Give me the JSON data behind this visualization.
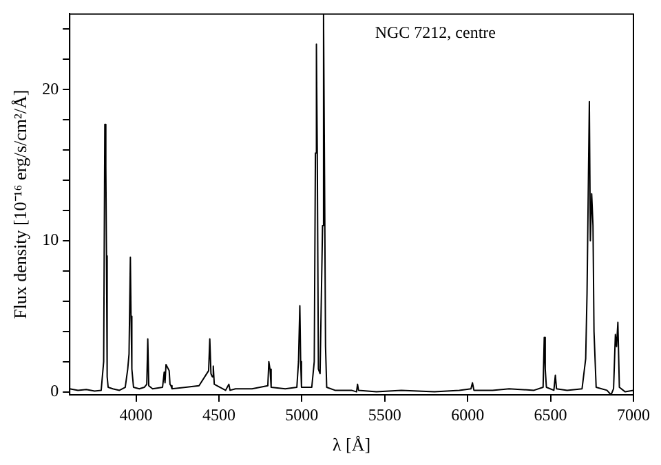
{
  "chart_data": {
    "type": "line",
    "xlabel": "λ [Å]",
    "ylabel": "Flux density [10⁻¹⁶ erg/s/cm²/Å]",
    "annotations": [
      "NGC 7212, centre"
    ],
    "x": [
      3600,
      3650,
      3700,
      3750,
      3790,
      3805,
      3812,
      3818,
      3822,
      3826,
      3832,
      3860,
      3900,
      3935,
      3950,
      3958,
      3966,
      3970,
      3975,
      3985,
      4020,
      4050,
      4065,
      4071,
      4077,
      4100,
      4160,
      4170,
      4175,
      4181,
      4200,
      4205,
      4211,
      4217,
      4300,
      4380,
      4438,
      4445,
      4452,
      4460,
      4466,
      4472,
      4540,
      4560,
      4567,
      4600,
      4700,
      4795,
      4801,
      4808,
      4815,
      4900,
      4970,
      4980,
      4988,
      4993,
      4998,
      5060,
      5075,
      5082,
      5088,
      5093,
      5100,
      5110,
      5125,
      5131,
      5137,
      5143,
      5150,
      5200,
      5300,
      5330,
      5336,
      5342,
      5450,
      5600,
      5800,
      5950,
      6020,
      6029,
      6038,
      6150,
      6250,
      6400,
      6455,
      6462,
      6468,
      6475,
      6520,
      6529,
      6536,
      6600,
      6690,
      6712,
      6720,
      6734,
      6740,
      6748,
      6756,
      6762,
      6775,
      6840,
      6865,
      6880,
      6891,
      6898,
      6906,
      6915,
      6950,
      7000
    ],
    "series": [
      {
        "color": "#000000",
        "values": [
          0.2,
          0.1,
          0.15,
          0.05,
          0.1,
          2.0,
          17.7,
          14.9,
          9.0,
          1.0,
          0.3,
          0.2,
          0.1,
          0.3,
          1.5,
          2.5,
          8.9,
          5.0,
          1.5,
          0.3,
          0.2,
          0.3,
          0.5,
          3.5,
          0.4,
          0.2,
          0.3,
          1.3,
          0.6,
          1.8,
          1.4,
          0.5,
          0.4,
          0.2,
          0.3,
          0.4,
          1.4,
          3.5,
          1.2,
          1.0,
          1.7,
          0.5,
          0.1,
          0.5,
          0.1,
          0.2,
          0.2,
          0.4,
          2.0,
          1.5,
          0.3,
          0.2,
          0.3,
          2.0,
          5.7,
          2.0,
          0.3,
          0.3,
          2.0,
          15.8,
          23.0,
          16.0,
          1.5,
          1.2,
          11.0,
          25.0,
          14.3,
          3.0,
          0.3,
          0.1,
          0.1,
          0.0,
          0.5,
          0.1,
          0.0,
          0.1,
          0.0,
          0.1,
          0.2,
          0.6,
          0.1,
          0.1,
          0.2,
          0.1,
          0.3,
          3.6,
          1.5,
          0.3,
          0.1,
          1.1,
          0.2,
          0.1,
          0.2,
          2.2,
          6.5,
          19.2,
          10.0,
          13.1,
          11.0,
          4.0,
          0.3,
          0.1,
          -0.2,
          0.2,
          3.8,
          3.0,
          4.6,
          0.3,
          0.0,
          0.1
        ]
      }
    ],
    "xlim": [
      3600,
      7000
    ],
    "ylim": [
      -0.2,
      25
    ],
    "xticks": [
      4000,
      4500,
      5000,
      5500,
      6000,
      6500,
      7000
    ],
    "yticks": [
      0,
      {
        "value": 2,
        "label": null
      },
      {
        "value": 4,
        "label": null
      },
      {
        "value": 6,
        "label": null
      },
      {
        "value": 8,
        "label": null
      },
      10,
      {
        "value": 12,
        "label": null
      },
      {
        "value": 14,
        "label": null
      },
      {
        "value": 16,
        "label": null
      },
      {
        "value": 18,
        "label": null
      },
      20,
      {
        "value": 22,
        "label": null
      },
      {
        "value": 24,
        "label": null
      }
    ],
    "grid": false,
    "legend": false,
    "marker": "none",
    "line_style": "solid"
  }
}
